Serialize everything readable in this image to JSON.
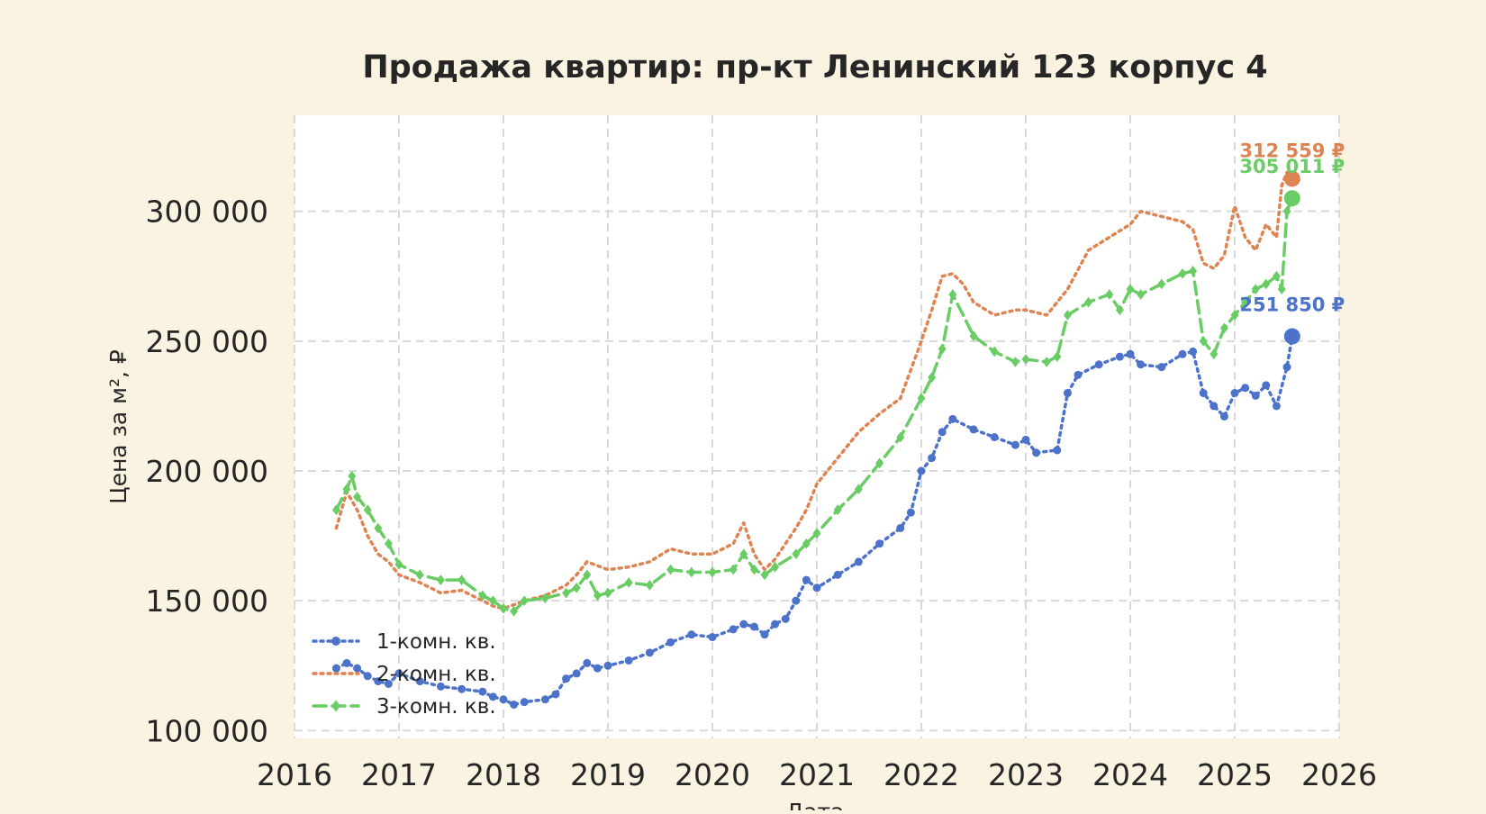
{
  "chart_data": {
    "type": "line",
    "title": "Продажа квартир: пр-кт Ленинский 123 корпус 4",
    "xlabel": "Дата",
    "ylabel": "Цена за м², ₽",
    "xlim": [
      2016,
      2026
    ],
    "ylim": [
      97000,
      337000
    ],
    "x_ticks": [
      2016,
      2017,
      2018,
      2019,
      2020,
      2021,
      2022,
      2023,
      2024,
      2025,
      2026
    ],
    "x_tick_labels": [
      "2016",
      "2017",
      "2018",
      "2019",
      "2020",
      "2021",
      "2022",
      "2023",
      "2024",
      "2025",
      "2026"
    ],
    "y_ticks": [
      100000,
      150000,
      200000,
      250000,
      300000
    ],
    "y_tick_labels": [
      "100 000",
      "150 000",
      "200 000",
      "250 000",
      "300 000"
    ],
    "grid": true,
    "legend_position": "bottom-left",
    "colors": {
      "background": "#faf3e1",
      "plot_bg": "#ffffff",
      "grid": "#d9d9d9",
      "text": "#262626"
    },
    "series": [
      {
        "name": "1-комн. кв.",
        "color": "#4c72c9",
        "line_style": "dotted",
        "marker": "circle",
        "x": [
          2016.4,
          2016.5,
          2016.6,
          2016.7,
          2016.8,
          2016.9,
          2017.0,
          2017.2,
          2017.4,
          2017.6,
          2017.8,
          2017.9,
          2018.0,
          2018.1,
          2018.2,
          2018.4,
          2018.5,
          2018.6,
          2018.7,
          2018.8,
          2018.9,
          2019.0,
          2019.2,
          2019.4,
          2019.6,
          2019.8,
          2020.0,
          2020.2,
          2020.3,
          2020.4,
          2020.5,
          2020.6,
          2020.7,
          2020.8,
          2020.9,
          2021.0,
          2021.2,
          2021.4,
          2021.6,
          2021.8,
          2021.9,
          2022.0,
          2022.1,
          2022.2,
          2022.3,
          2022.5,
          2022.7,
          2022.9,
          2023.0,
          2023.1,
          2023.3,
          2023.4,
          2023.5,
          2023.7,
          2023.9,
          2024.0,
          2024.1,
          2024.3,
          2024.5,
          2024.6,
          2024.7,
          2024.8,
          2024.9,
          2025.0,
          2025.1,
          2025.2,
          2025.3,
          2025.4,
          2025.5,
          2025.55
        ],
        "y": [
          124000,
          126000,
          124000,
          121000,
          119000,
          118000,
          122000,
          119000,
          117000,
          116000,
          115000,
          113000,
          112000,
          110000,
          111000,
          112000,
          114000,
          120000,
          122000,
          126000,
          124000,
          125000,
          127000,
          130000,
          134000,
          137000,
          136000,
          139000,
          141000,
          140000,
          137000,
          141000,
          143000,
          150000,
          158000,
          155000,
          160000,
          165000,
          172000,
          178000,
          184000,
          200000,
          205000,
          215000,
          220000,
          216000,
          213000,
          210000,
          212000,
          207000,
          208000,
          230000,
          237000,
          241000,
          244000,
          245000,
          241000,
          240000,
          245000,
          246000,
          230000,
          225000,
          221000,
          230000,
          232000,
          229000,
          233000,
          225000,
          240000,
          251850
        ]
      },
      {
        "name": "2-комн. кв.",
        "color": "#dd8452",
        "line_style": "dotted",
        "marker": "none",
        "x": [
          2016.4,
          2016.5,
          2016.6,
          2016.7,
          2016.8,
          2016.9,
          2017.0,
          2017.2,
          2017.4,
          2017.6,
          2017.8,
          2017.9,
          2018.0,
          2018.2,
          2018.4,
          2018.6,
          2018.7,
          2018.8,
          2019.0,
          2019.2,
          2019.4,
          2019.6,
          2019.8,
          2020.0,
          2020.2,
          2020.3,
          2020.4,
          2020.5,
          2020.6,
          2020.8,
          2020.9,
          2021.0,
          2021.2,
          2021.4,
          2021.6,
          2021.8,
          2022.0,
          2022.1,
          2022.2,
          2022.3,
          2022.4,
          2022.5,
          2022.7,
          2022.9,
          2023.0,
          2023.2,
          2023.3,
          2023.4,
          2023.6,
          2023.8,
          2024.0,
          2024.1,
          2024.3,
          2024.5,
          2024.6,
          2024.7,
          2024.8,
          2024.9,
          2025.0,
          2025.1,
          2025.2,
          2025.3,
          2025.4,
          2025.45,
          2025.5,
          2025.55
        ],
        "y": [
          178000,
          192000,
          185000,
          175000,
          168000,
          165000,
          160000,
          157000,
          153000,
          154000,
          150000,
          148000,
          147000,
          150000,
          152000,
          156000,
          160000,
          165000,
          162000,
          163000,
          165000,
          170000,
          168000,
          168000,
          172000,
          180000,
          168000,
          162000,
          166000,
          178000,
          185000,
          195000,
          205000,
          215000,
          222000,
          228000,
          250000,
          262000,
          275000,
          276000,
          272000,
          265000,
          260000,
          262000,
          262000,
          260000,
          265000,
          270000,
          285000,
          290000,
          295000,
          300000,
          298000,
          296000,
          293000,
          280000,
          278000,
          283000,
          302000,
          290000,
          285000,
          295000,
          290000,
          310000,
          315000,
          312559
        ]
      },
      {
        "name": "3-комн. кв.",
        "color": "#6acc65",
        "line_style": "dashed",
        "marker": "diamond",
        "x": [
          2016.4,
          2016.5,
          2016.55,
          2016.6,
          2016.7,
          2016.8,
          2016.9,
          2017.0,
          2017.2,
          2017.4,
          2017.6,
          2017.8,
          2017.9,
          2018.0,
          2018.1,
          2018.2,
          2018.4,
          2018.6,
          2018.7,
          2018.8,
          2018.9,
          2019.0,
          2019.2,
          2019.4,
          2019.6,
          2019.8,
          2020.0,
          2020.2,
          2020.3,
          2020.4,
          2020.5,
          2020.6,
          2020.8,
          2020.9,
          2021.0,
          2021.2,
          2021.4,
          2021.6,
          2021.8,
          2022.0,
          2022.1,
          2022.2,
          2022.3,
          2022.5,
          2022.7,
          2022.9,
          2023.0,
          2023.2,
          2023.3,
          2023.4,
          2023.6,
          2023.8,
          2023.9,
          2024.0,
          2024.1,
          2024.3,
          2024.5,
          2024.6,
          2024.7,
          2024.8,
          2024.9,
          2025.0,
          2025.1,
          2025.2,
          2025.3,
          2025.4,
          2025.45,
          2025.5,
          2025.55
        ],
        "y": [
          185000,
          193000,
          198000,
          190000,
          185000,
          178000,
          172000,
          164000,
          160000,
          158000,
          158000,
          152000,
          150000,
          147000,
          146000,
          150000,
          151000,
          153000,
          155000,
          160000,
          152000,
          153000,
          157000,
          156000,
          162000,
          161000,
          161000,
          162000,
          168000,
          162000,
          160000,
          163000,
          168000,
          172000,
          176000,
          185000,
          193000,
          203000,
          213000,
          228000,
          236000,
          247000,
          268000,
          252000,
          246000,
          242000,
          243000,
          242000,
          244000,
          260000,
          265000,
          268000,
          262000,
          270000,
          268000,
          272000,
          276000,
          277000,
          250000,
          245000,
          255000,
          260000,
          265000,
          270000,
          272000,
          275000,
          270000,
          300000,
          305011
        ]
      }
    ],
    "annotations": [
      {
        "series": "1-комн. кв.",
        "x": 2025.55,
        "y": 251850,
        "text": "251 850 ₽"
      },
      {
        "series": "2-комн. кв.",
        "x": 2025.55,
        "y": 312559,
        "text": "312 559 ₽"
      },
      {
        "series": "3-комн. кв.",
        "x": 2025.55,
        "y": 305011,
        "text": "305 011 ₽"
      }
    ]
  }
}
